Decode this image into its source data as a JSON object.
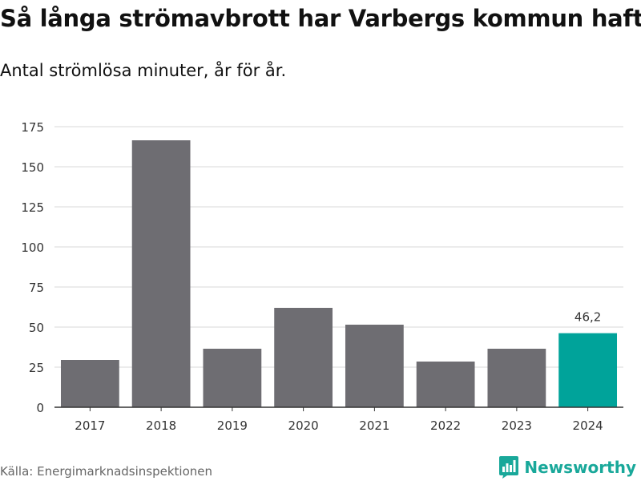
{
  "chart_data": {
    "type": "bar",
    "title": "Så långa strömavbrott har Varbergs kommun haft",
    "subtitle": "Antal strömlösa minuter, år för år.",
    "categories": [
      "2017",
      "2018",
      "2019",
      "2020",
      "2021",
      "2022",
      "2023",
      "2024"
    ],
    "values": [
      29.5,
      166.5,
      36.5,
      62,
      51.5,
      28.5,
      36.5,
      46.2
    ],
    "highlight_index": 7,
    "highlight_label": "46,2",
    "yticks": [
      "0",
      "25",
      "50",
      "75",
      "100",
      "125",
      "150",
      "175"
    ],
    "ylim": [
      0,
      175
    ],
    "xlabel": "",
    "ylabel": "",
    "grid": true,
    "bar_color": "#6e6d72",
    "highlight_color": "#00a39a"
  },
  "footer": {
    "source": "Källa: Energimarknadsinspektionen",
    "brand": "Newsworthy",
    "brand_color": "#19a89a"
  }
}
